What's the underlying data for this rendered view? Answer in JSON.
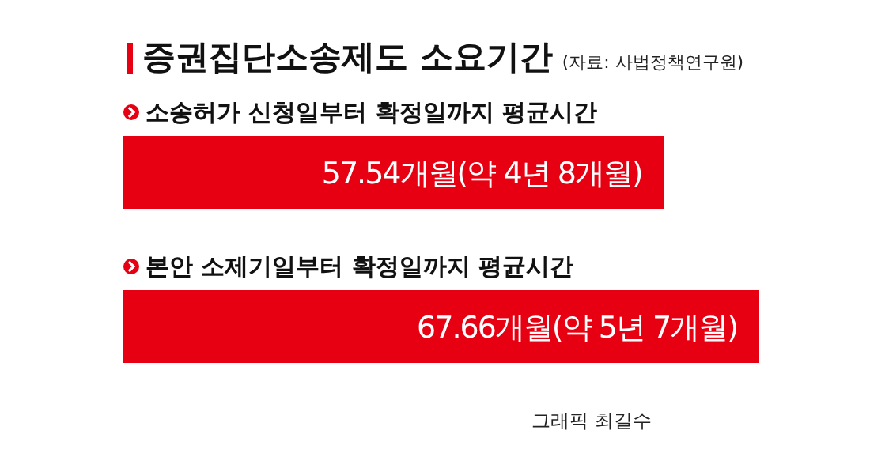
{
  "chart_data": {
    "type": "bar",
    "orientation": "horizontal",
    "title": "증권집단소송제도 소요기간",
    "subtitle": "(자료: 사법정책연구원)",
    "categories": [
      "소송허가 신청일부터 확정일까지 평균시간",
      "본안 소제기일부터 확정일까지 평균시간"
    ],
    "values": [
      57.54,
      67.66
    ],
    "color": "#e60012",
    "value_labels": [
      "57.54개월(약 4년 8개월)",
      "67.66개월(약 5년 7개월)"
    ],
    "annotations": [
      "그래픽 최길수"
    ]
  }
}
